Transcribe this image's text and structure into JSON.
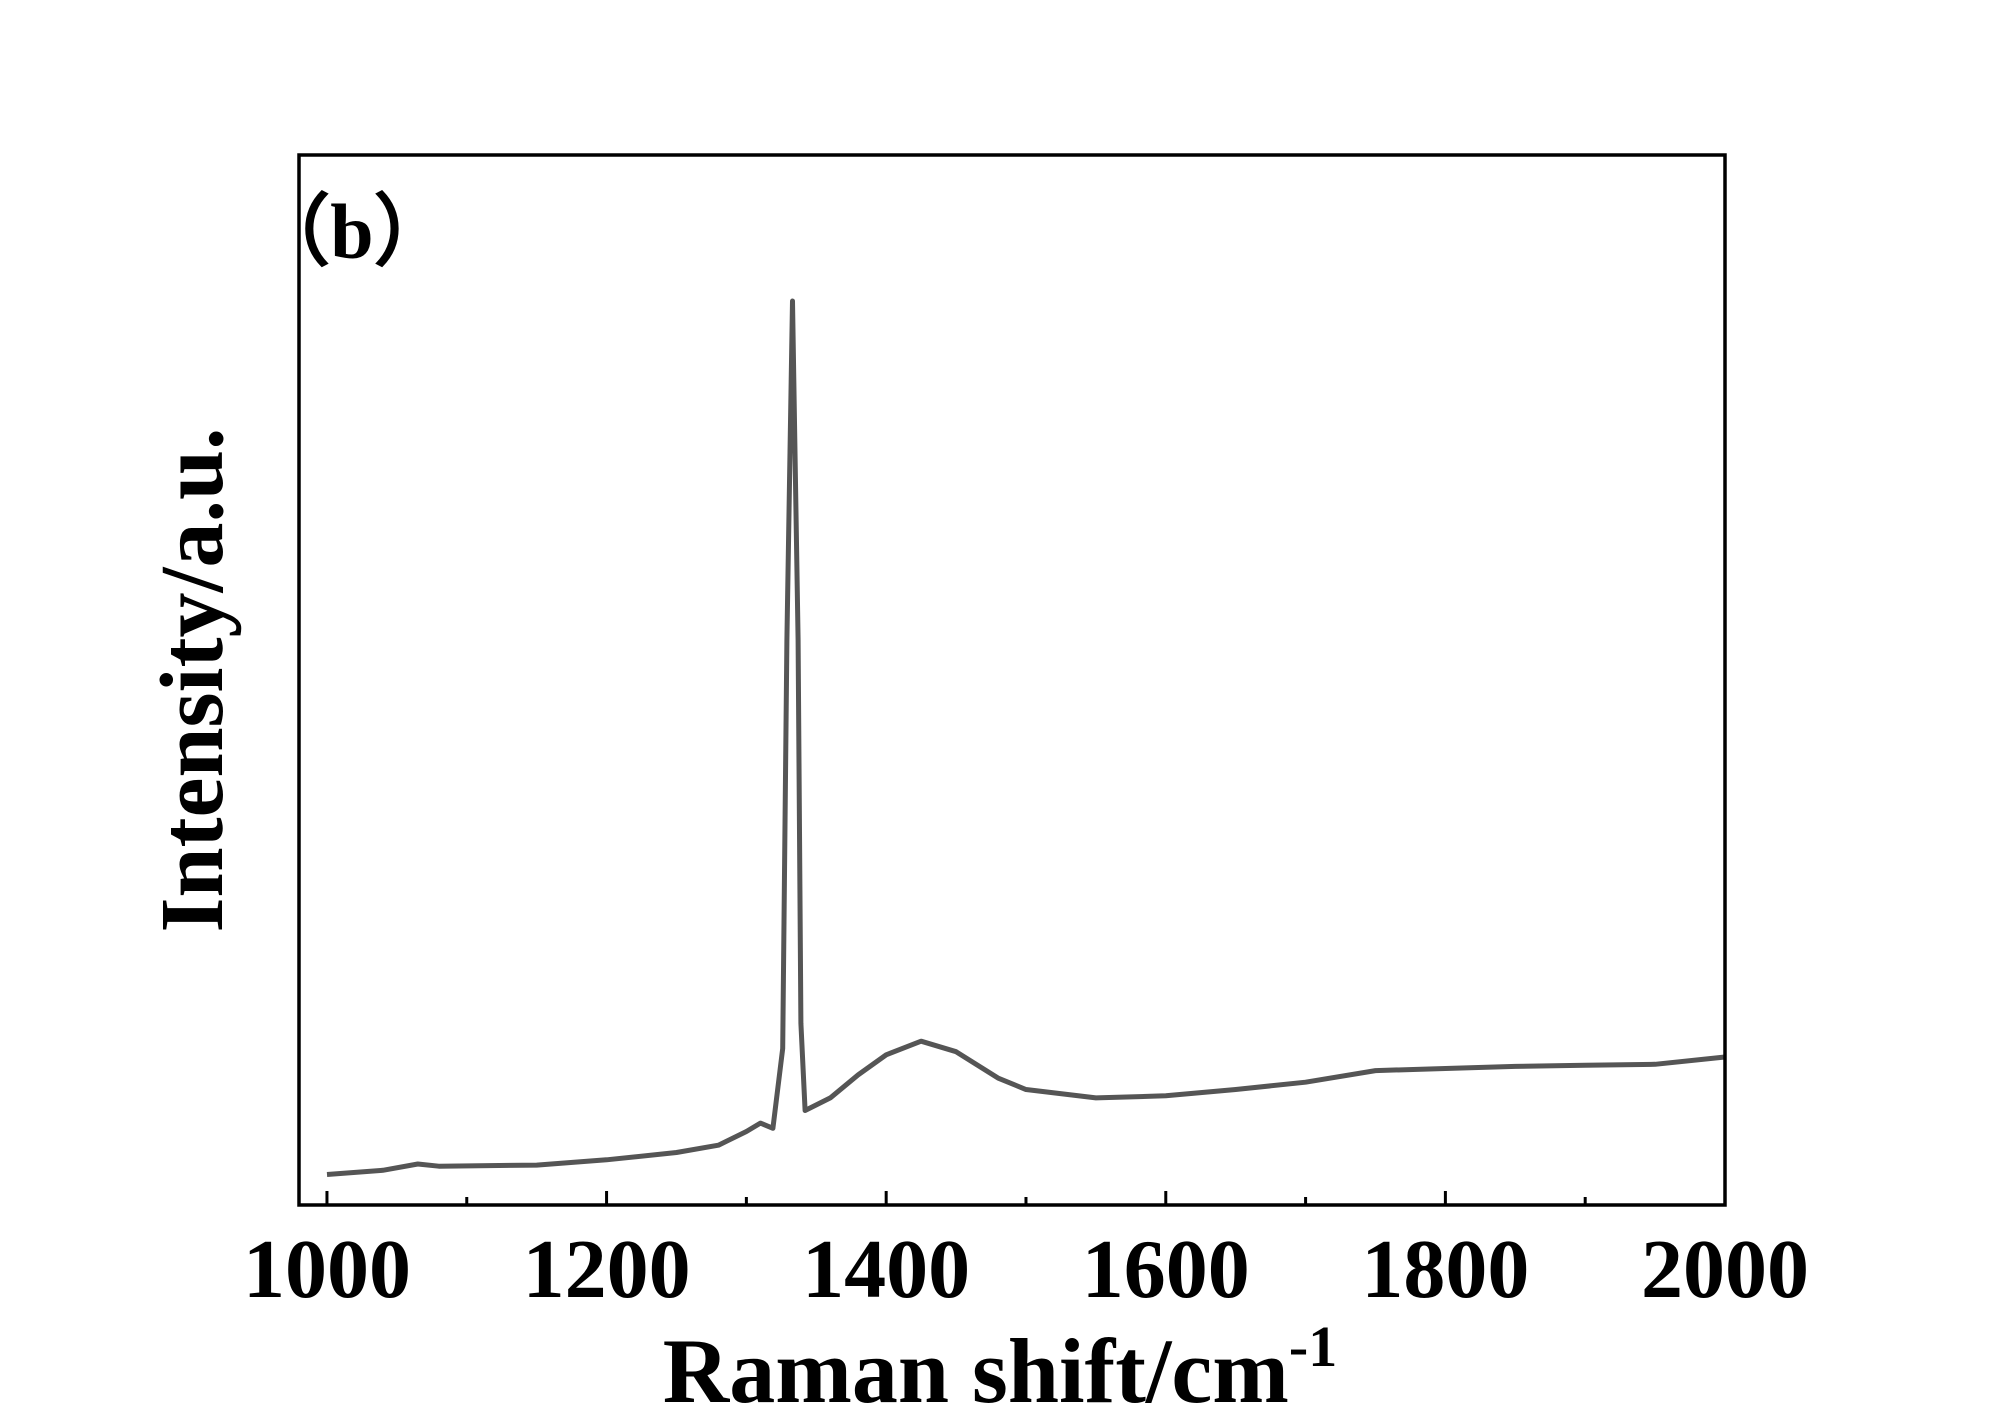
{
  "chart_data": {
    "type": "line",
    "annotation": "（b）",
    "xlabel": "Raman shift/cm",
    "xlabel_superscript": "-1",
    "ylabel": "Intensity/a.u.",
    "x": [
      1000,
      1040,
      1065,
      1080,
      1150,
      1200,
      1250,
      1280,
      1300,
      1310,
      1319,
      1326,
      1329,
      1333,
      1337,
      1339,
      1342,
      1360,
      1380,
      1400,
      1425,
      1450,
      1480,
      1500,
      1550,
      1600,
      1650,
      1700,
      1750,
      1800,
      1850,
      1900,
      1950,
      2000
    ],
    "series": [
      {
        "color": "#555555",
        "values": [
          2.9,
          3.3,
          3.9,
          3.7,
          3.8,
          4.3,
          5.0,
          5.7,
          7.0,
          7.8,
          7.3,
          14.9,
          53.8,
          86.1,
          53.8,
          17.3,
          9.0,
          10.2,
          12.4,
          14.3,
          15.6,
          14.6,
          12.1,
          11.0,
          10.2,
          10.4,
          11.0,
          11.7,
          12.8,
          13.0,
          13.2,
          13.3,
          13.4,
          14.1
        ]
      }
    ],
    "xlim": [
      980,
      2000
    ],
    "ylim": [
      0,
      100
    ],
    "xticks": [
      1000,
      1200,
      1400,
      1600,
      1800,
      2000
    ],
    "xminorticks": [
      1100,
      1300,
      1500,
      1700,
      1900
    ]
  }
}
